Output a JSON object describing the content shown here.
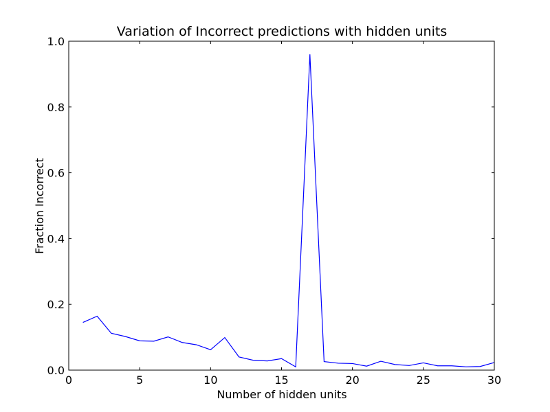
{
  "chart_data": {
    "type": "line",
    "title": "Variation of Incorrect predictions with hidden units",
    "xlabel": "Number of hidden units",
    "ylabel": "Fraction Incorrect",
    "xlim": [
      0,
      30
    ],
    "ylim": [
      0,
      1.0
    ],
    "x_ticks": [
      0,
      5,
      10,
      15,
      20,
      25,
      30
    ],
    "x_tick_labels": [
      "0",
      "5",
      "10",
      "15",
      "20",
      "25",
      "30"
    ],
    "y_ticks": [
      0.0,
      0.2,
      0.4,
      0.6,
      0.8,
      1.0
    ],
    "y_tick_labels": [
      "0.0",
      "0.2",
      "0.4",
      "0.6",
      "0.8",
      "1.0"
    ],
    "grid": false,
    "series": [
      {
        "color": "#0000ff",
        "x": [
          1,
          2,
          3,
          4,
          5,
          6,
          7,
          8,
          9,
          10,
          11,
          12,
          13,
          14,
          15,
          16,
          17,
          18,
          19,
          20,
          21,
          22,
          23,
          24,
          25,
          26,
          27,
          28,
          29,
          30
        ],
        "y": [
          0.145,
          0.164,
          0.112,
          0.102,
          0.089,
          0.088,
          0.101,
          0.084,
          0.077,
          0.062,
          0.099,
          0.04,
          0.03,
          0.028,
          0.035,
          0.01,
          0.96,
          0.026,
          0.021,
          0.02,
          0.012,
          0.027,
          0.017,
          0.014,
          0.022,
          0.013,
          0.013,
          0.01,
          0.011,
          0.023
        ]
      }
    ]
  }
}
